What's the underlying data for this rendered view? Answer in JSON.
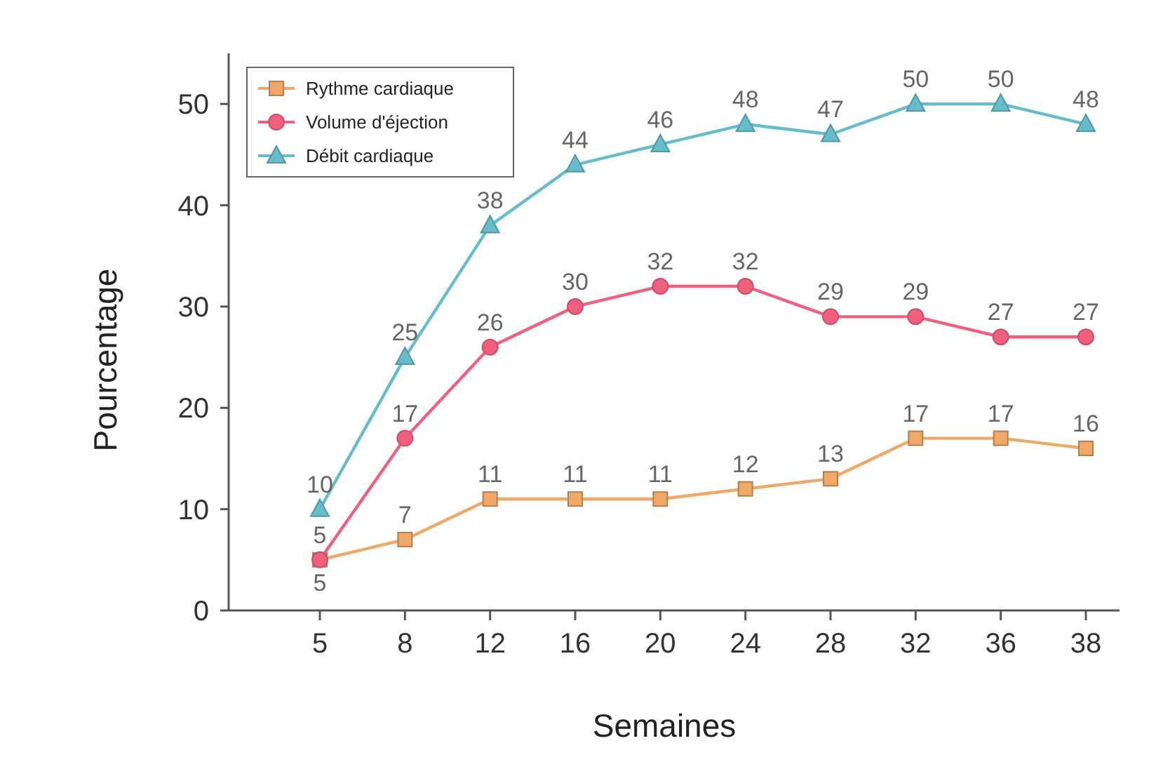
{
  "chart_data": {
    "type": "line",
    "xlabel": "Semaines",
    "ylabel": "Pourcentage",
    "categories": [
      "5",
      "8",
      "12",
      "16",
      "20",
      "24",
      "28",
      "32",
      "36",
      "38"
    ],
    "ylim": [
      0,
      55
    ],
    "yticks": [
      0,
      10,
      20,
      30,
      40,
      50
    ],
    "grid": false,
    "legend": "top left",
    "data_labels": true,
    "series": [
      {
        "name": "Rythme cardiaque",
        "color": "#f0a868",
        "marker": "square",
        "values": [
          5,
          7,
          11,
          11,
          11,
          12,
          13,
          17,
          17,
          16
        ]
      },
      {
        "name": "Volume d'éjection",
        "color": "#f0607e",
        "marker": "circle",
        "values": [
          5,
          17,
          26,
          30,
          32,
          32,
          29,
          29,
          27,
          27
        ]
      },
      {
        "name": "Débit cardiaque",
        "color": "#66bccb",
        "marker": "triangle",
        "values": [
          10,
          25,
          38,
          44,
          46,
          48,
          47,
          50,
          50,
          48
        ]
      }
    ]
  }
}
